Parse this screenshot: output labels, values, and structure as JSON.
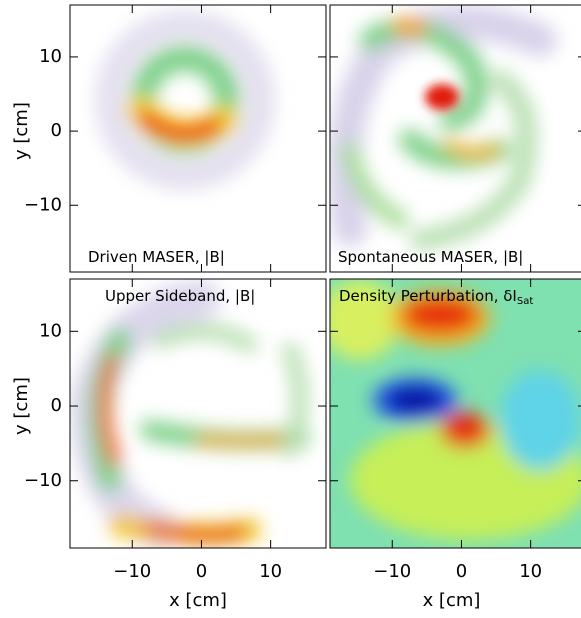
{
  "chart_data": [
    {
      "type": "heatmap",
      "title": "Driven MASER, |B|",
      "xlim": [
        -19,
        18
      ],
      "ylim": [
        -19,
        17
      ],
      "ylabel": "y [cm]",
      "yticks": [
        {
          "value": -10,
          "label": "−10"
        },
        0,
        10
      ]
    },
    {
      "type": "heatmap",
      "title": "Spontaneous MASER, |B|",
      "xlim": [
        -19,
        18
      ],
      "ylim": [
        -19,
        17
      ]
    },
    {
      "type": "heatmap",
      "title": "Upper Sideband, |B|",
      "xlim": [
        -19,
        18
      ],
      "ylim": [
        -19,
        17
      ],
      "ylabel": "y [cm]",
      "xlabel": "x [cm]",
      "yticks": [
        {
          "value": -10,
          "label": "−10"
        },
        0,
        10
      ],
      "xticks": [
        {
          "value": -10,
          "label": "−10"
        },
        0,
        10
      ]
    },
    {
      "type": "heatmap",
      "title": "Density Perturbation, δI",
      "title_subscript": "Sat",
      "xlim": [
        -19,
        18
      ],
      "ylim": [
        -19,
        17
      ],
      "xlabel": "x [cm]",
      "xticks": [
        {
          "value": -10,
          "label": "−10"
        },
        0,
        10
      ]
    }
  ]
}
